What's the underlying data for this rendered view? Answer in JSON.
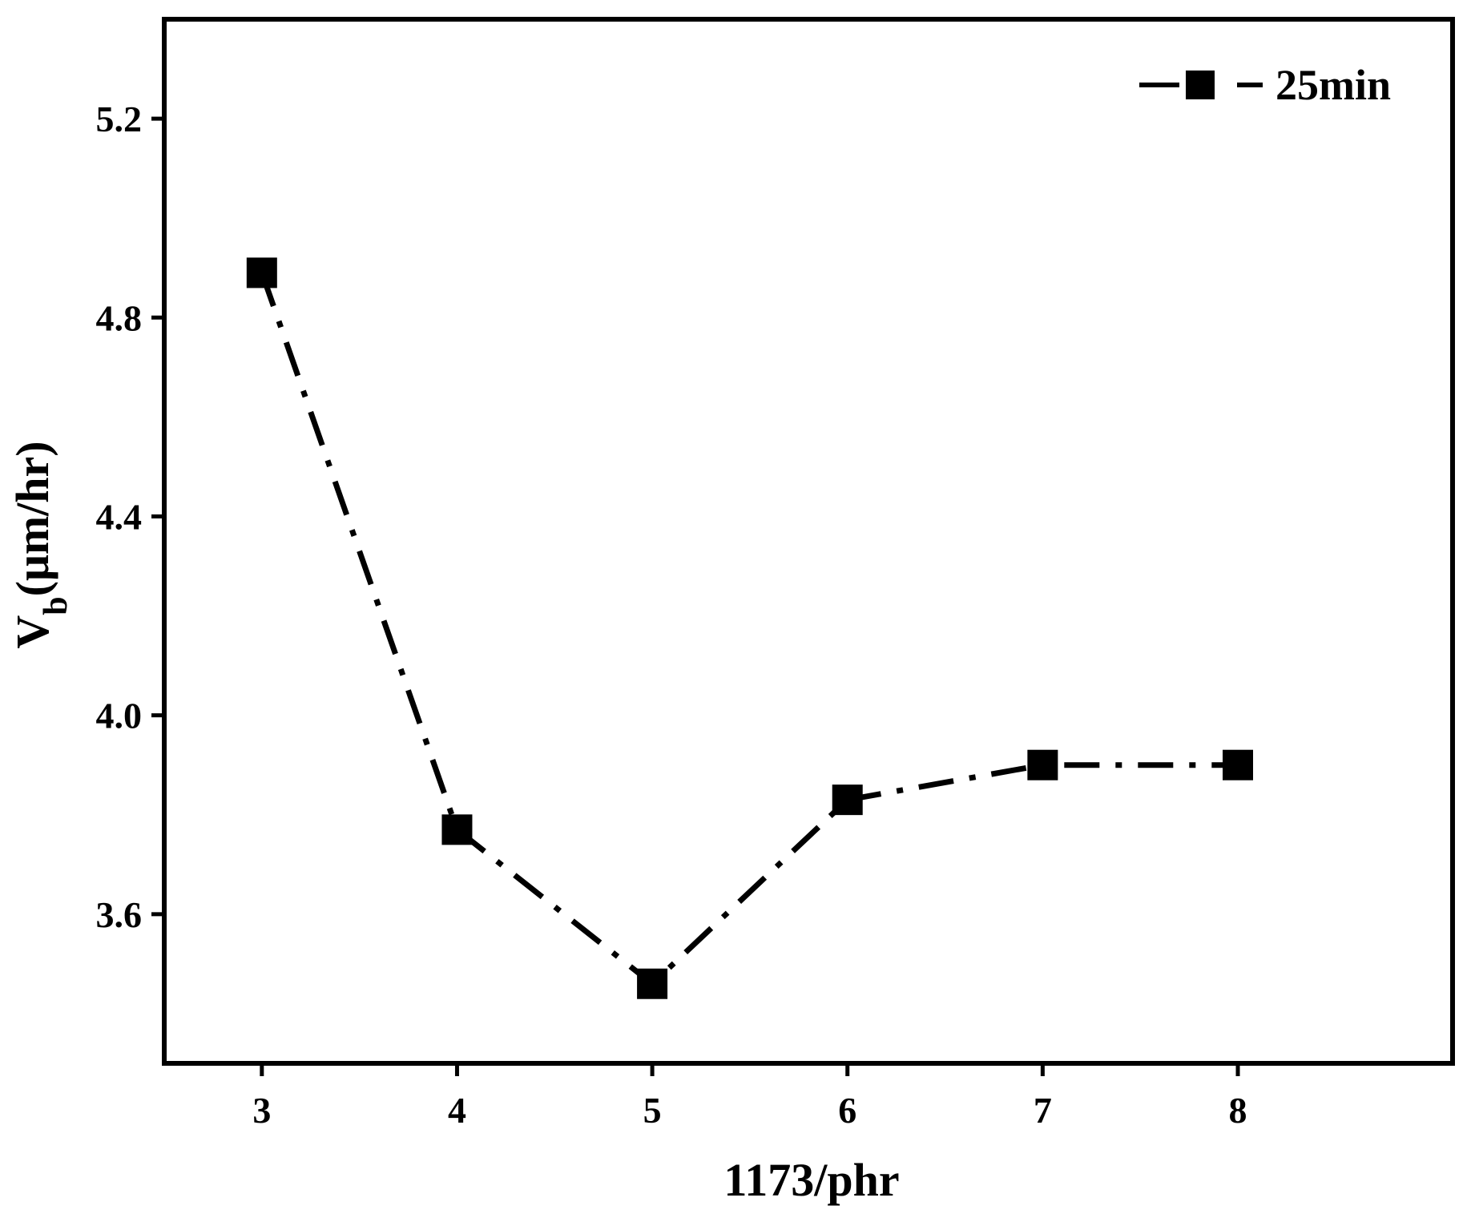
{
  "chart_data": {
    "type": "line",
    "title": "",
    "xlabel": "1173/phr",
    "ylabel": {
      "main": "V",
      "sub": "b",
      "unit": "(μm/hr)"
    },
    "x": [
      3,
      4,
      5,
      6,
      7,
      8
    ],
    "x_ticks": [
      "3",
      "4",
      "5",
      "6",
      "7",
      "8"
    ],
    "y_ticks": [
      "3.6",
      "4.0",
      "4.4",
      "4.8",
      "5.2"
    ],
    "y_tick_values": [
      3.6,
      4.0,
      4.4,
      4.8,
      5.2
    ],
    "xlim": [
      2.5,
      9.1
    ],
    "ylim": [
      3.3,
      5.4
    ],
    "grid": false,
    "legend_position": "top-right",
    "series": [
      {
        "name": "25min",
        "values": [
          4.89,
          3.77,
          3.46,
          3.83,
          3.9,
          3.9
        ],
        "color": "#000000",
        "marker": "square",
        "line_style": "dash-dot"
      }
    ]
  }
}
